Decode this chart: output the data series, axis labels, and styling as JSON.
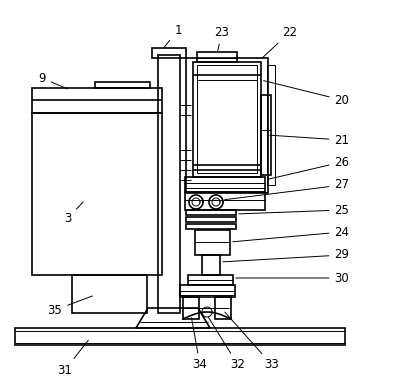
{
  "background_color": "#ffffff",
  "line_color": "#000000",
  "lw": 1.2,
  "tlw": 0.7,
  "figsize": [
    3.93,
    3.87
  ],
  "dpi": 100
}
